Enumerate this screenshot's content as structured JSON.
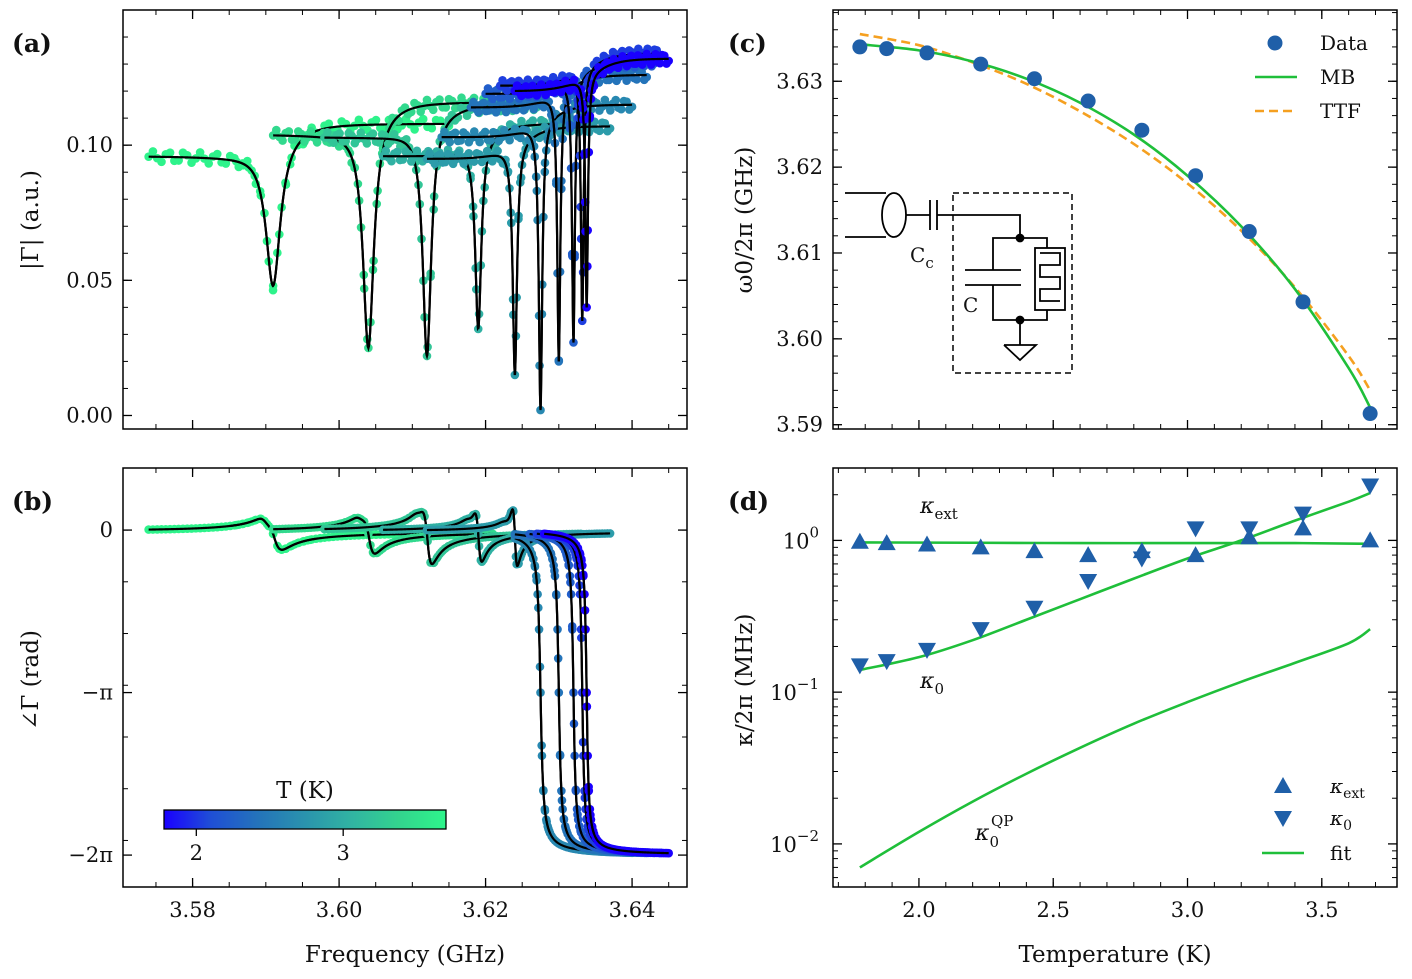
{
  "figure": {
    "colorbar": {
      "title": "T (K)",
      "ticks": [
        {
          "value": 2,
          "label": "2"
        },
        {
          "value": 3,
          "label": "3"
        }
      ],
      "range": [
        1.78,
        3.7
      ],
      "colors": [
        "#1a00ff",
        "#1f4fd6",
        "#2473ba",
        "#2a93ad",
        "#31b4a2",
        "#33d48e",
        "#2ef58b"
      ]
    },
    "panels": [
      {
        "id": "a",
        "label": "(a)",
        "ylabel": "|Γ| (a.u.)",
        "yticks": [
          {
            "value": 0.0,
            "label": "0.00"
          },
          {
            "value": 0.05,
            "label": "0.05"
          },
          {
            "value": 0.1,
            "label": "0.10"
          }
        ]
      },
      {
        "id": "b",
        "label": "(b)",
        "xlabel": "Frequency (GHz)",
        "ylabel": "∠Γ (rad)",
        "xticks": [
          {
            "value": 3.58,
            "label": "3.58"
          },
          {
            "value": 3.6,
            "label": "3.60"
          },
          {
            "value": 3.62,
            "label": "3.62"
          },
          {
            "value": 3.64,
            "label": "3.64"
          }
        ],
        "yticks": [
          {
            "value": 0,
            "label": "0"
          },
          {
            "value": -3.14159,
            "label": "−π"
          },
          {
            "value": -6.28318,
            "label": "−2π"
          }
        ]
      },
      {
        "id": "c",
        "label": "(c)",
        "ylabel": "ω0/2π (GHz)",
        "yticks": [
          {
            "value": 3.59,
            "label": "3.59"
          },
          {
            "value": 3.6,
            "label": "3.60"
          },
          {
            "value": 3.61,
            "label": "3.61"
          },
          {
            "value": 3.62,
            "label": "3.62"
          },
          {
            "value": 3.63,
            "label": "3.63"
          }
        ],
        "legend": [
          {
            "name": "Data"
          },
          {
            "name": "MB"
          },
          {
            "name": "TTF"
          }
        ],
        "inset": {
          "coupling_cap_label": "Cc",
          "cap_label": "C"
        }
      },
      {
        "id": "d",
        "label": "(d)",
        "xlabel": "Temperature (K)",
        "ylabel": "κ/2π (MHz)",
        "xticks": [
          {
            "value": 2.0,
            "label": "2.0"
          },
          {
            "value": 2.5,
            "label": "2.5"
          },
          {
            "value": 3.0,
            "label": "3.0"
          },
          {
            "value": 3.5,
            "label": "3.5"
          }
        ],
        "legend": [
          {
            "name": "κext"
          },
          {
            "name": "κ0"
          },
          {
            "name": "fit"
          }
        ],
        "annotations": {
          "kext": "κext",
          "k0": "κ0",
          "kqp": "κ0QP"
        }
      }
    ]
  },
  "chart_data": [
    {
      "type": "line",
      "panel": "a",
      "title": "",
      "xlabel": "",
      "ylabel": "|Γ| (a.u.)",
      "xlim": [
        3.5705,
        3.6475
      ],
      "ylim": [
        -0.005,
        0.15
      ],
      "series": [
        {
          "T": 3.68,
          "f0": 3.591,
          "min": 0.048,
          "baseline": 0.102,
          "offset_level": 0.11,
          "width": 0.0012,
          "fmin": 3.574,
          "fmax": 3.615
        },
        {
          "T": 3.43,
          "f0": 3.604,
          "min": 0.025,
          "baseline": 0.11,
          "offset_level": 0.113,
          "width": 0.0009,
          "fmin": 3.591,
          "fmax": 3.621
        },
        {
          "T": 3.23,
          "f0": 3.612,
          "min": 0.022,
          "baseline": 0.109,
          "offset_level": 0.102,
          "width": 0.0007,
          "fmin": 3.598,
          "fmax": 3.627
        },
        {
          "T": 3.03,
          "f0": 3.619,
          "min": 0.032,
          "baseline": 0.102,
          "offset_level": 0.124,
          "width": 0.0005,
          "fmin": 3.606,
          "fmax": 3.633
        },
        {
          "T": 2.83,
          "f0": 3.624,
          "min": 0.015,
          "baseline": 0.101,
          "offset_level": 0.132,
          "width": 0.00035,
          "fmin": 3.612,
          "fmax": 3.637
        },
        {
          "T": 2.63,
          "f0": 3.6275,
          "min": 0.002,
          "baseline": 0.109,
          "offset_level": 0.131,
          "width": 0.00028,
          "fmin": 3.614,
          "fmax": 3.64
        },
        {
          "T": 2.43,
          "f0": 3.63,
          "min": 0.02,
          "baseline": 0.12,
          "offset_level": 0.137,
          "width": 0.00025,
          "fmin": 3.618,
          "fmax": 3.642
        },
        {
          "T": 2.23,
          "f0": 3.632,
          "min": 0.027,
          "baseline": 0.125,
          "offset_level": 0.132,
          "width": 0.00023,
          "fmin": 3.62,
          "fmax": 3.643
        },
        {
          "T": 2.03,
          "f0": 3.6332,
          "min": 0.035,
          "baseline": 0.128,
          "offset_level": 0.13,
          "width": 0.00022,
          "fmin": 3.622,
          "fmax": 3.644
        },
        {
          "T": 1.78,
          "f0": 3.6338,
          "min": 0.04,
          "baseline": 0.126,
          "offset_level": 0.128,
          "width": 0.00021,
          "fmin": 3.624,
          "fmax": 3.645
        }
      ]
    },
    {
      "type": "line",
      "panel": "b",
      "title": "",
      "xlabel": "Frequency (GHz)",
      "ylabel": "∠Γ (rad)",
      "xlim": [
        3.5705,
        3.6475
      ],
      "ylim": [
        -6.9,
        1.2
      ],
      "series": [
        {
          "T": 3.68,
          "f0": 3.591,
          "amp": 0.7,
          "regime": "undercoupled",
          "width": 0.0012,
          "fmin": 3.574,
          "fmax": 3.615
        },
        {
          "T": 3.43,
          "f0": 3.604,
          "amp": 0.85,
          "regime": "undercoupled",
          "width": 0.0009,
          "fmin": 3.591,
          "fmax": 3.621
        },
        {
          "T": 3.23,
          "f0": 3.612,
          "amp": 1.25,
          "regime": "undercoupled",
          "width": 0.0007,
          "fmin": 3.598,
          "fmax": 3.627
        },
        {
          "T": 3.03,
          "f0": 3.619,
          "amp": 1.15,
          "regime": "undercoupled",
          "width": 0.0005,
          "fmin": 3.606,
          "fmax": 3.633
        },
        {
          "T": 2.83,
          "f0": 3.624,
          "amp": 1.3,
          "regime": "undercoupled",
          "width": 0.00035,
          "fmin": 3.612,
          "fmax": 3.637
        },
        {
          "T": 2.63,
          "f0": 3.6275,
          "amp": 6.28,
          "regime": "overcoupled",
          "width": 0.00028,
          "fmin": 3.624,
          "fmax": 3.64
        },
        {
          "T": 2.43,
          "f0": 3.63,
          "amp": 6.28,
          "regime": "overcoupled",
          "width": 0.00025,
          "fmin": 3.624,
          "fmax": 3.642
        },
        {
          "T": 2.23,
          "f0": 3.632,
          "amp": 6.28,
          "regime": "overcoupled",
          "width": 0.00023,
          "fmin": 3.626,
          "fmax": 3.643
        },
        {
          "T": 2.03,
          "f0": 3.6332,
          "amp": 6.28,
          "regime": "overcoupled",
          "width": 0.00022,
          "fmin": 3.627,
          "fmax": 3.644
        },
        {
          "T": 1.78,
          "f0": 3.6338,
          "amp": 6.28,
          "regime": "overcoupled",
          "width": 0.00021,
          "fmin": 3.628,
          "fmax": 3.645
        }
      ]
    },
    {
      "type": "scatter",
      "panel": "c",
      "title": "",
      "xlabel": "",
      "ylabel": "ω0/2π (GHz)",
      "xlim": [
        1.68,
        3.78
      ],
      "ylim": [
        3.5895,
        3.6383
      ],
      "series": [
        {
          "name": "Data",
          "x": [
            1.78,
            1.88,
            2.03,
            2.23,
            2.43,
            2.63,
            2.83,
            3.03,
            3.23,
            3.43,
            3.68
          ],
          "y": [
            3.634,
            3.6338,
            3.6333,
            3.632,
            3.6303,
            3.6277,
            3.6243,
            3.619,
            3.6125,
            3.6043,
            3.5913
          ]
        },
        {
          "name": "MB",
          "x": [
            1.78,
            2.0,
            2.2,
            2.4,
            2.6,
            2.8,
            3.0,
            3.2,
            3.4,
            3.6,
            3.68
          ],
          "y": [
            3.6343,
            3.6336,
            3.6323,
            3.6303,
            3.6275,
            3.6238,
            3.619,
            3.6131,
            3.6058,
            3.5966,
            3.592
          ]
        },
        {
          "name": "TTF",
          "x": [
            1.78,
            2.0,
            2.2,
            2.4,
            2.6,
            2.8,
            3.0,
            3.2,
            3.4,
            3.6,
            3.68
          ],
          "y": [
            3.6355,
            3.6342,
            3.6322,
            3.6297,
            3.6265,
            3.6227,
            3.6181,
            3.6126,
            3.606,
            3.598,
            3.594
          ]
        }
      ]
    },
    {
      "type": "scatter",
      "panel": "d",
      "title": "",
      "xlabel": "Temperature (K)",
      "ylabel": "κ/2π (MHz)",
      "xlim": [
        1.68,
        3.78
      ],
      "ylim": [
        0.0052,
        3.0
      ],
      "yscale": "log",
      "yticks": [
        0.01,
        0.1,
        1
      ],
      "series": [
        {
          "name": "κext",
          "x": [
            1.78,
            1.88,
            2.03,
            2.23,
            2.43,
            2.63,
            2.83,
            3.03,
            3.23,
            3.43,
            3.68
          ],
          "y": [
            0.98,
            0.96,
            0.94,
            0.9,
            0.85,
            0.8,
            0.85,
            0.8,
            1.05,
            1.2,
            1.0
          ]
        },
        {
          "name": "κ0",
          "x": [
            1.78,
            1.88,
            2.03,
            2.23,
            2.43,
            2.63,
            2.83,
            3.03,
            3.23,
            3.43,
            3.68
          ],
          "y": [
            0.15,
            0.16,
            0.19,
            0.26,
            0.36,
            0.54,
            0.76,
            1.2,
            1.2,
            1.5,
            2.3
          ]
        },
        {
          "name": "fit κext",
          "x": [
            1.78,
            2.2,
            2.6,
            3.0,
            3.4,
            3.68
          ],
          "y": [
            0.97,
            0.965,
            0.96,
            0.96,
            0.96,
            0.95
          ]
        },
        {
          "name": "fit κ0",
          "x": [
            1.78,
            2.0,
            2.2,
            2.4,
            2.6,
            2.8,
            3.0,
            3.2,
            3.4,
            3.6,
            3.68
          ],
          "y": [
            0.14,
            0.17,
            0.22,
            0.3,
            0.41,
            0.56,
            0.76,
            1.0,
            1.35,
            1.8,
            2.05
          ]
        },
        {
          "name": "fit κ0QP",
          "x": [
            1.78,
            2.0,
            2.2,
            2.4,
            2.6,
            2.8,
            3.0,
            3.2,
            3.4,
            3.6,
            3.68
          ],
          "y": [
            0.007,
            0.012,
            0.019,
            0.029,
            0.043,
            0.062,
            0.086,
            0.117,
            0.156,
            0.21,
            0.26
          ]
        }
      ]
    }
  ]
}
